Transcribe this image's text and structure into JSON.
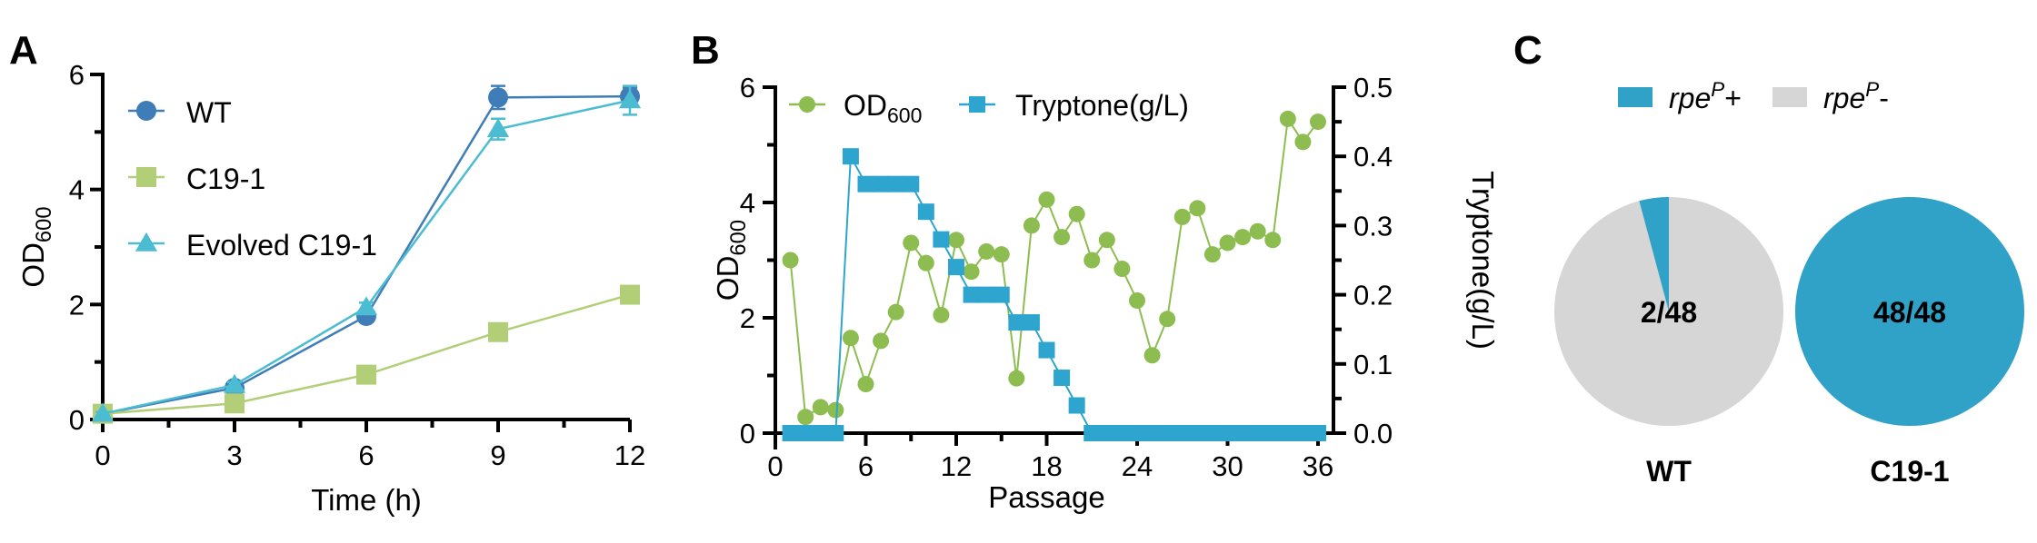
{
  "chart_data": [
    {
      "panel": "A",
      "type": "line",
      "xlabel": "Time (h)",
      "ylabel": "OD",
      "ylabel_sub": "600",
      "xlim": [
        0,
        12
      ],
      "ylim": [
        0,
        6
      ],
      "xticks": [
        "0",
        "3",
        "6",
        "9",
        "12"
      ],
      "yticks": [
        "0",
        "2",
        "4",
        "6"
      ],
      "x": [
        0,
        3,
        6,
        9,
        12
      ],
      "legend": "top-left",
      "series": [
        {
          "name": "WT",
          "marker": "circle",
          "color": "#3e7db8",
          "values": [
            0.1,
            0.55,
            1.8,
            5.6,
            5.62
          ],
          "errors": [
            0.05,
            0.05,
            0.1,
            0.2,
            0.15
          ]
        },
        {
          "name": "C19-1",
          "marker": "square",
          "color": "#b2cf78",
          "values": [
            0.1,
            0.28,
            0.78,
            1.52,
            2.17
          ],
          "errors": [
            0.03,
            0.03,
            0.05,
            0.05,
            0.15
          ]
        },
        {
          "name": "Evolved C19-1",
          "marker": "triangle",
          "color": "#4cbcd2",
          "values": [
            0.1,
            0.6,
            1.95,
            5.05,
            5.55
          ],
          "errors": [
            0.03,
            0.05,
            0.08,
            0.18,
            0.25
          ]
        }
      ]
    },
    {
      "panel": "B",
      "type": "line",
      "xlabel": "Passage",
      "ylabel": "OD",
      "ylabel_sub": "600",
      "ylabel_right": "Tryptone(g/L)",
      "xlim": [
        0,
        36
      ],
      "ylim": [
        0,
        6
      ],
      "ylim_right": [
        0,
        0.5
      ],
      "xticks": [
        "0",
        "6",
        "12",
        "18",
        "24",
        "30",
        "36"
      ],
      "yticks": [
        "0",
        "2",
        "4",
        "6"
      ],
      "yticks_right": [
        "0.0",
        "0.1",
        "0.2",
        "0.3",
        "0.4",
        "0.5"
      ],
      "legend": "top",
      "x": [
        1,
        2,
        3,
        4,
        5,
        6,
        7,
        8,
        9,
        10,
        11,
        12,
        13,
        14,
        15,
        16,
        17,
        18,
        19,
        20,
        21,
        22,
        23,
        24,
        25,
        26,
        27,
        28,
        29,
        30,
        31,
        32,
        33,
        34,
        35,
        36
      ],
      "series": [
        {
          "name": "OD",
          "name_sub": "600",
          "axis": "left",
          "marker": "circle",
          "color": "#8dbd50",
          "values": [
            3.0,
            0.28,
            0.45,
            0.4,
            1.65,
            0.85,
            1.6,
            2.1,
            3.3,
            2.95,
            2.05,
            3.35,
            2.8,
            3.15,
            3.1,
            0.95,
            3.6,
            4.05,
            3.4,
            3.8,
            3.0,
            3.35,
            2.85,
            2.3,
            1.35,
            1.98,
            3.75,
            3.9,
            3.1,
            3.3,
            3.4,
            3.5,
            3.35,
            5.45,
            5.05,
            5.4
          ]
        },
        {
          "name": "Tryptone(g/L)",
          "axis": "right",
          "marker": "square",
          "color": "#2ea5cf",
          "values": [
            0,
            0,
            0,
            0,
            0.4,
            0.36,
            0.36,
            0.36,
            0.36,
            0.32,
            0.28,
            0.24,
            0.2,
            0.2,
            0.2,
            0.16,
            0.16,
            0.12,
            0.08,
            0.04,
            0,
            0,
            0,
            0,
            0,
            0,
            0,
            0,
            0,
            0,
            0,
            0,
            0,
            0,
            0,
            0
          ]
        }
      ]
    },
    {
      "panel": "C",
      "type": "pie",
      "legend": [
        {
          "italic": "rpe",
          "sup": "P",
          "suffix": "+",
          "color": "#30a2c8"
        },
        {
          "italic": "rpe",
          "sup": "P",
          "suffix": "-",
          "color": "#d6d6d6"
        }
      ],
      "pies": [
        {
          "name": "WT",
          "label": "2/48",
          "positive": 2,
          "total": 48
        },
        {
          "name": "C19-1",
          "label": "48/48",
          "positive": 48,
          "total": 48
        }
      ]
    }
  ],
  "panel_labels": [
    "A",
    "B",
    "C"
  ]
}
